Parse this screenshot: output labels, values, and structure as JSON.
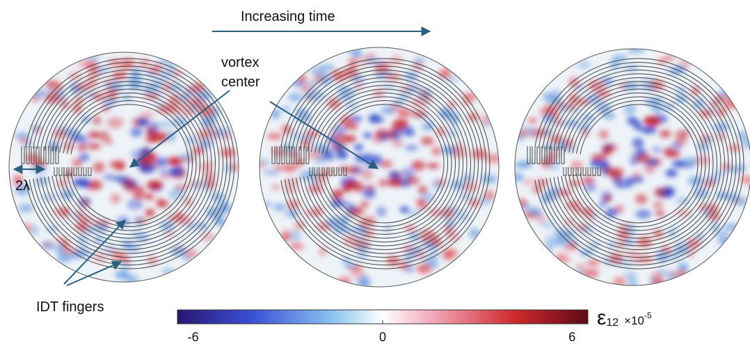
{
  "header": {
    "arrow_label": "Increasing time"
  },
  "annotations": {
    "vortex": [
      "vortex",
      "center"
    ],
    "wavelength": "2λ",
    "fingers": "IDT fingers"
  },
  "colorbar": {
    "symbol": "ε",
    "subscript": "12",
    "scale": "×10",
    "exponent": "-5",
    "lim": [
      -6.5,
      6.5
    ],
    "ticks": [
      -6,
      0,
      6
    ]
  }
}
